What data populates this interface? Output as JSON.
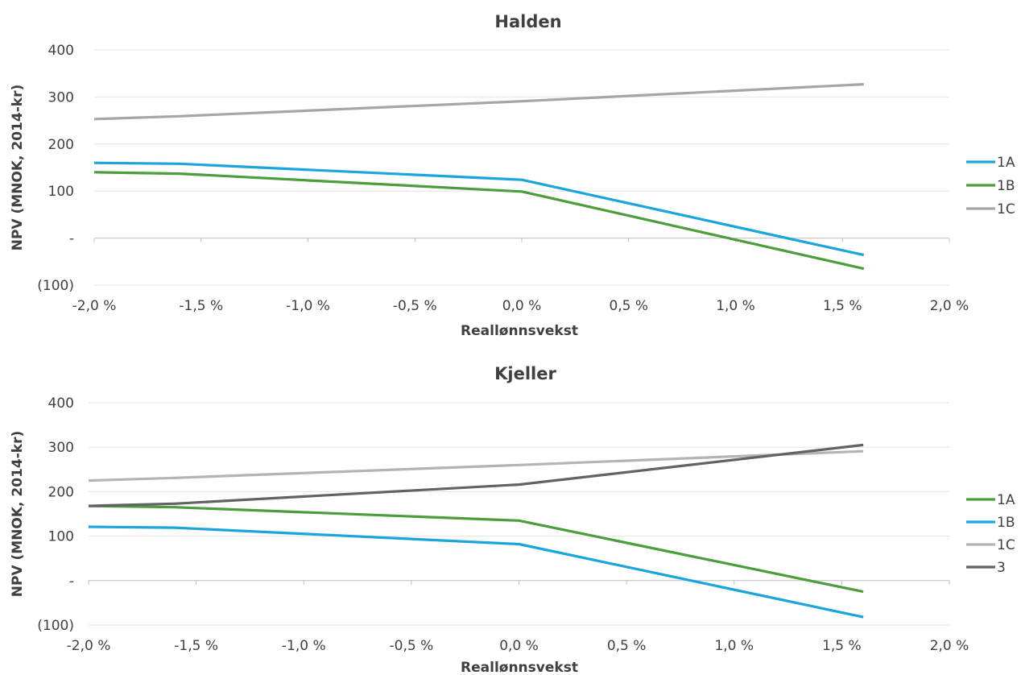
{
  "chart_data": [
    {
      "type": "line",
      "title": "Halden",
      "xlabel": "Reallønnsvekst",
      "ylabel": "NPV (MNOK, 2014-kr)",
      "xlim": [
        -2.0,
        2.0
      ],
      "ylim": [
        -100,
        400
      ],
      "x_ticks": [
        "-2,0 %",
        "-1,5 %",
        "-1,0 %",
        "-0,5 %",
        "0,0 %",
        "0,5 %",
        "1,0 %",
        "1,5 %",
        "2,0 %"
      ],
      "y_ticks": [
        "400",
        "300",
        "200",
        "100",
        "-",
        "(100)"
      ],
      "grid": true,
      "legend_position": "right",
      "series": [
        {
          "name": "1A",
          "color": "#1aa6dd",
          "x": [
            -2.0,
            -1.6,
            0.0,
            1.6
          ],
          "y": [
            160,
            158,
            124,
            -36
          ]
        },
        {
          "name": "1B",
          "color": "#4a9e3b",
          "x": [
            -2.0,
            -1.6,
            0.0,
            1.6
          ],
          "y": [
            140,
            137,
            99,
            -65
          ]
        },
        {
          "name": "1C",
          "color": "#a6a6a6",
          "x": [
            -2.0,
            -1.6,
            0.0,
            1.6
          ],
          "y": [
            253,
            259,
            291,
            327
          ]
        }
      ]
    },
    {
      "type": "line",
      "title": "Kjeller",
      "xlabel": "Reallønnsvekst",
      "ylabel": "NPV (MNOK, 2014-kr)",
      "xlim": [
        -2.0,
        2.0
      ],
      "ylim": [
        -100,
        400
      ],
      "x_ticks": [
        "-2,0 %",
        "-1,5 %",
        "-1,0 %",
        "-0,5 %",
        "0,0 %",
        "0,5 %",
        "1,0 %",
        "1,5 %",
        "2,0 %"
      ],
      "y_ticks": [
        "400",
        "300",
        "200",
        "100",
        "-",
        "(100)"
      ],
      "grid": true,
      "legend_position": "right",
      "series": [
        {
          "name": "1A",
          "color": "#4a9e3b",
          "x": [
            -2.0,
            -1.6,
            0.0,
            1.6
          ],
          "y": [
            168,
            165,
            135,
            -25
          ]
        },
        {
          "name": "1B",
          "color": "#1aa6dd",
          "x": [
            -2.0,
            -1.6,
            0.0,
            1.6
          ],
          "y": [
            121,
            119,
            82,
            -82
          ]
        },
        {
          "name": "1C",
          "color": "#b4b4b4",
          "x": [
            -2.0,
            -1.6,
            0.0,
            1.6
          ],
          "y": [
            225,
            231,
            260,
            291
          ]
        },
        {
          "name": "3",
          "color": "#636363",
          "x": [
            -2.0,
            -1.6,
            0.0,
            1.6
          ],
          "y": [
            168,
            173,
            216,
            305
          ]
        }
      ]
    }
  ]
}
